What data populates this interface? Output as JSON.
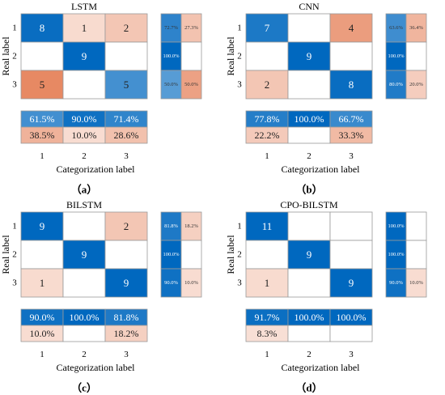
{
  "chart_data": [
    {
      "type": "heatmap",
      "panel_label": "（a）",
      "title": "LSTM",
      "xlabel": "Categorization label",
      "ylabel": "Real label",
      "labels": [
        "1",
        "2",
        "3"
      ],
      "matrix": [
        [
          "8",
          "1",
          "2"
        ],
        [
          "",
          "9",
          ""
        ],
        [
          "5",
          "",
          "5"
        ]
      ],
      "row_summary": [
        [
          "72.7%",
          "27.3%"
        ],
        [
          "100.0%",
          ""
        ],
        [
          "50.0%",
          "50.0%"
        ]
      ],
      "col_summary": [
        [
          "61.5%",
          "90.0%",
          "71.4%"
        ],
        [
          "38.5%",
          "10.0%",
          "28.6%"
        ]
      ]
    },
    {
      "type": "heatmap",
      "panel_label": "（b）",
      "title": "CNN",
      "xlabel": "Categorization label",
      "ylabel": "Real label",
      "labels": [
        "1",
        "2",
        "3"
      ],
      "matrix": [
        [
          "7",
          "",
          "4"
        ],
        [
          "",
          "9",
          ""
        ],
        [
          "2",
          "",
          "8"
        ]
      ],
      "row_summary": [
        [
          "63.6%",
          "36.4%"
        ],
        [
          "100.0%",
          ""
        ],
        [
          "80.0%",
          "20.0%"
        ]
      ],
      "col_summary": [
        [
          "77.8%",
          "100.0%",
          "66.7%"
        ],
        [
          "22.2%",
          "",
          "33.3%"
        ]
      ]
    },
    {
      "type": "heatmap",
      "panel_label": "（c）",
      "title": "BILSTM",
      "xlabel": "Categorization label",
      "ylabel": "Real label",
      "labels": [
        "1",
        "2",
        "3"
      ],
      "matrix": [
        [
          "9",
          "",
          "2"
        ],
        [
          "",
          "9",
          ""
        ],
        [
          "1",
          "",
          "9"
        ]
      ],
      "row_summary": [
        [
          "81.8%",
          "18.2%"
        ],
        [
          "100.0%",
          ""
        ],
        [
          "90.0%",
          "10.0%"
        ]
      ],
      "col_summary": [
        [
          "90.0%",
          "100.0%",
          "81.8%"
        ],
        [
          "10.0%",
          "",
          "18.2%"
        ]
      ]
    },
    {
      "type": "heatmap",
      "panel_label": "（d）",
      "title": "CPO-BILSTM",
      "xlabel": "Categorization label",
      "ylabel": "Real label",
      "labels": [
        "1",
        "2",
        "3"
      ],
      "matrix": [
        [
          "11",
          "",
          ""
        ],
        [
          "",
          "9",
          ""
        ],
        [
          "1",
          "",
          "9"
        ]
      ],
      "row_summary": [
        [
          "100.0%",
          ""
        ],
        [
          "100.0%",
          ""
        ],
        [
          "90.0%",
          "10.0%"
        ]
      ],
      "col_summary": [
        [
          "91.7%",
          "100.0%",
          "100.0%"
        ],
        [
          "8.3%",
          "",
          ""
        ]
      ]
    }
  ]
}
